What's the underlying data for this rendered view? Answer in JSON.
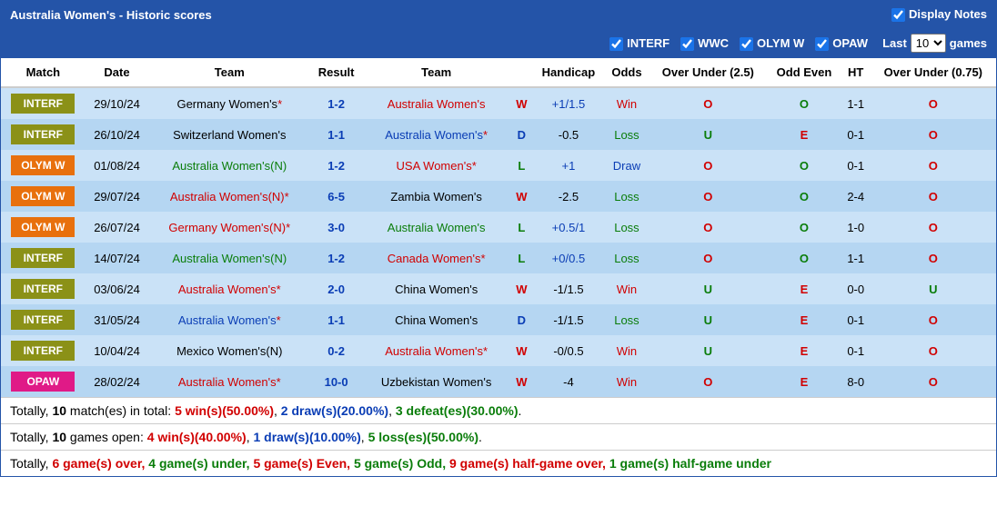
{
  "header": {
    "title": "Australia Women's - Historic scores",
    "display_notes_label": "Display Notes",
    "display_notes_checked": true
  },
  "filters": {
    "items": [
      {
        "label": "INTERF",
        "checked": true
      },
      {
        "label": "WWC",
        "checked": true
      },
      {
        "label": "OLYM W",
        "checked": true
      },
      {
        "label": "OPAW",
        "checked": true
      }
    ],
    "last_label_prefix": "Last",
    "last_label_suffix": "games",
    "last_value": "10"
  },
  "columns": [
    "Match",
    "Date",
    "Team",
    "Result",
    "Team",
    "",
    "Handicap",
    "Odds",
    "Over Under (2.5)",
    "Odd Even",
    "HT",
    "Over Under (0.75)"
  ],
  "rows": [
    {
      "match": "INTERF",
      "badge": "INTERF",
      "date": "29/10/24",
      "home": "Germany Women's",
      "home_suffix": "*",
      "home_color": "black",
      "result": "1-2",
      "away": "Australia Women's",
      "away_suffix": "",
      "away_color": "red",
      "wld": "W",
      "handicap": "+1/1.5",
      "hc_color": "blue",
      "odds": "Win",
      "odds_class": "odds-win",
      "ou25": "O",
      "oe": "O",
      "ht": "1-1",
      "ou075": "O",
      "row": "light"
    },
    {
      "match": "INTERF",
      "badge": "INTERF",
      "date": "26/10/24",
      "home": "Switzerland Women's",
      "home_suffix": "",
      "home_color": "black",
      "result": "1-1",
      "away": "Australia Women's",
      "away_suffix": "*",
      "away_color": "blue",
      "wld": "D",
      "handicap": "-0.5",
      "hc_color": "black",
      "odds": "Loss",
      "odds_class": "odds-loss",
      "ou25": "U",
      "oe": "E",
      "ht": "0-1",
      "ou075": "O",
      "row": "dark"
    },
    {
      "match": "OLYM W",
      "badge": "OLYM-W",
      "date": "01/08/24",
      "home": "Australia Women's(N)",
      "home_suffix": "",
      "home_color": "green",
      "result": "1-2",
      "away": "USA Women's",
      "away_suffix": "*",
      "away_color": "red",
      "wld": "L",
      "handicap": "+1",
      "hc_color": "blue",
      "odds": "Draw",
      "odds_class": "odds-draw",
      "ou25": "O",
      "oe": "O",
      "ht": "0-1",
      "ou075": "O",
      "row": "light"
    },
    {
      "match": "OLYM W",
      "badge": "OLYM-W",
      "date": "29/07/24",
      "home": "Australia Women's(N)",
      "home_suffix": "*",
      "home_color": "red",
      "result": "6-5",
      "away": "Zambia Women's",
      "away_suffix": "",
      "away_color": "black",
      "wld": "W",
      "handicap": "-2.5",
      "hc_color": "black",
      "odds": "Loss",
      "odds_class": "odds-loss",
      "ou25": "O",
      "oe": "O",
      "ht": "2-4",
      "ou075": "O",
      "row": "dark"
    },
    {
      "match": "OLYM W",
      "badge": "OLYM-W",
      "date": "26/07/24",
      "home": "Germany Women's(N)",
      "home_suffix": "*",
      "home_color": "red",
      "result": "3-0",
      "away": "Australia Women's",
      "away_suffix": "",
      "away_color": "green",
      "wld": "L",
      "handicap": "+0.5/1",
      "hc_color": "blue",
      "odds": "Loss",
      "odds_class": "odds-loss",
      "ou25": "O",
      "oe": "O",
      "ht": "1-0",
      "ou075": "O",
      "row": "light"
    },
    {
      "match": "INTERF",
      "badge": "INTERF",
      "date": "14/07/24",
      "home": "Australia Women's(N)",
      "home_suffix": "",
      "home_color": "green",
      "result": "1-2",
      "away": "Canada Women's",
      "away_suffix": "*",
      "away_color": "red",
      "wld": "L",
      "handicap": "+0/0.5",
      "hc_color": "blue",
      "odds": "Loss",
      "odds_class": "odds-loss",
      "ou25": "O",
      "oe": "O",
      "ht": "1-1",
      "ou075": "O",
      "row": "dark"
    },
    {
      "match": "INTERF",
      "badge": "INTERF",
      "date": "03/06/24",
      "home": "Australia Women's",
      "home_suffix": "*",
      "home_color": "red",
      "result": "2-0",
      "away": "China Women's",
      "away_suffix": "",
      "away_color": "black",
      "wld": "W",
      "handicap": "-1/1.5",
      "hc_color": "black",
      "odds": "Win",
      "odds_class": "odds-win",
      "ou25": "U",
      "oe": "E",
      "ht": "0-0",
      "ou075": "U",
      "row": "light"
    },
    {
      "match": "INTERF",
      "badge": "INTERF",
      "date": "31/05/24",
      "home": "Australia Women's",
      "home_suffix": "*",
      "home_color": "blue",
      "result": "1-1",
      "away": "China Women's",
      "away_suffix": "",
      "away_color": "black",
      "wld": "D",
      "handicap": "-1/1.5",
      "hc_color": "black",
      "odds": "Loss",
      "odds_class": "odds-loss",
      "ou25": "U",
      "oe": "E",
      "ht": "0-1",
      "ou075": "O",
      "row": "dark"
    },
    {
      "match": "INTERF",
      "badge": "INTERF",
      "date": "10/04/24",
      "home": "Mexico Women's(N)",
      "home_suffix": "",
      "home_color": "black",
      "result": "0-2",
      "away": "Australia Women's",
      "away_suffix": "*",
      "away_color": "red",
      "wld": "W",
      "handicap": "-0/0.5",
      "hc_color": "black",
      "odds": "Win",
      "odds_class": "odds-win",
      "ou25": "U",
      "oe": "E",
      "ht": "0-1",
      "ou075": "O",
      "row": "light"
    },
    {
      "match": "OPAW",
      "badge": "OPAW",
      "date": "28/02/24",
      "home": "Australia Women's",
      "home_suffix": "*",
      "home_color": "red",
      "result": "10-0",
      "away": "Uzbekistan Women's",
      "away_suffix": "",
      "away_color": "black",
      "wld": "W",
      "handicap": "-4",
      "hc_color": "black",
      "odds": "Win",
      "odds_class": "odds-win",
      "ou25": "O",
      "oe": "E",
      "ht": "8-0",
      "ou075": "O",
      "row": "dark"
    }
  ],
  "summary": {
    "line1": {
      "prefix": "Totally, ",
      "total": "10",
      "mid": " match(es) in total: ",
      "wins": "5",
      "wins_pct": "50.00%",
      "draws": "2",
      "draws_pct": "20.00%",
      "losses": "3",
      "losses_pct": "30.00%"
    },
    "line2": {
      "prefix": "Totally, ",
      "total": "10",
      "mid": " games open: ",
      "wins": "4",
      "wins_pct": "40.00%",
      "draws": "1",
      "draws_pct": "10.00%",
      "losses": "5",
      "losses_pct": "50.00%"
    },
    "line3": {
      "prefix": "Totally, ",
      "over": "6",
      "over_txt": " game(s) over, ",
      "under": "4",
      "under_txt": " game(s) under, ",
      "even": "5",
      "even_txt": " game(s) Even, ",
      "odd": "5",
      "odd_txt": " game(s) Odd, ",
      "hgo": "9",
      "hgo_txt": " game(s) half-game over, ",
      "hgu": "1",
      "hgu_txt": " game(s) half-game under"
    }
  }
}
